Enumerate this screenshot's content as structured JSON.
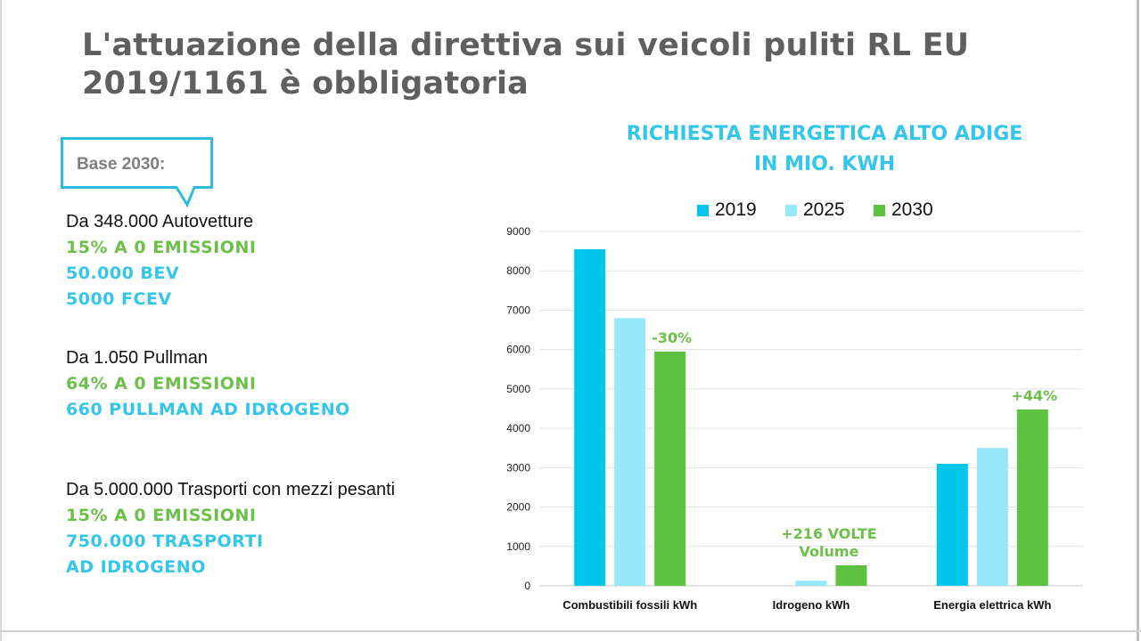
{
  "title": "L'attuazione della direttiva sui veicoli puliti RL EU 2019/1161 è obbligatoria",
  "callout": {
    "label": "Base 2030:"
  },
  "blocks": [
    {
      "lines": [
        {
          "text": "Da 348.000 Autovetture",
          "style": "plain"
        },
        {
          "text": "15% A 0 EMISSIONI",
          "style": "green"
        },
        {
          "text": "50.000 BEV",
          "style": "cyan"
        },
        {
          "text": "5000 FCEV",
          "style": "cyan"
        }
      ]
    },
    {
      "lines": [
        {
          "text": "Da 1.050 Pullman",
          "style": "plain"
        },
        {
          "text": "64% A 0 EMISSIONI",
          "style": "green"
        },
        {
          "text": "660 PULLMAN AD IDROGENO",
          "style": "cyan"
        }
      ]
    },
    {
      "lines": [
        {
          "text": "Da 5.000.000 Trasporti con mezzi pesanti",
          "style": "plain"
        },
        {
          "text": "15% A 0 EMISSIONI",
          "style": "green"
        },
        {
          "text": "750.000 TRASPORTI",
          "style": "cyan"
        },
        {
          "text": "AD IDROGENO",
          "style": "cyan"
        }
      ]
    }
  ],
  "colors": {
    "cyan": "#00c6ec",
    "light_cyan": "#97e8fb",
    "green": "#5cc23f",
    "annotation": "#6cc04a"
  },
  "chart_data": {
    "type": "bar",
    "title_lines": [
      "RICHIESTA ENERGETICA ALTO ADIGE",
      "IN MIO. KWH"
    ],
    "categories": [
      "Combustibili fossili kWh",
      "Idrogeno  kWh",
      "Energia elettrica kWh"
    ],
    "series": [
      {
        "name": "2019",
        "color": "#00c6ec",
        "values": [
          8550,
          0,
          3100
        ]
      },
      {
        "name": "2025",
        "color": "#97e8fb",
        "values": [
          6800,
          130,
          3500
        ]
      },
      {
        "name": "2030",
        "color": "#5cc23f",
        "values": [
          5950,
          520,
          4480
        ]
      }
    ],
    "ylim": [
      0,
      9000
    ],
    "yticks": [
      0,
      1000,
      2000,
      3000,
      4000,
      5000,
      6000,
      7000,
      8000,
      9000
    ],
    "grid": true,
    "legend": "top-center",
    "annotations": [
      {
        "category": 0,
        "series": 2,
        "lines": [
          "-30%"
        ]
      },
      {
        "category": 1,
        "series": 2,
        "lines": [
          "+216 VOLTE",
          "Volume"
        ]
      },
      {
        "category": 2,
        "series": 2,
        "lines": [
          "+44%"
        ]
      }
    ]
  }
}
